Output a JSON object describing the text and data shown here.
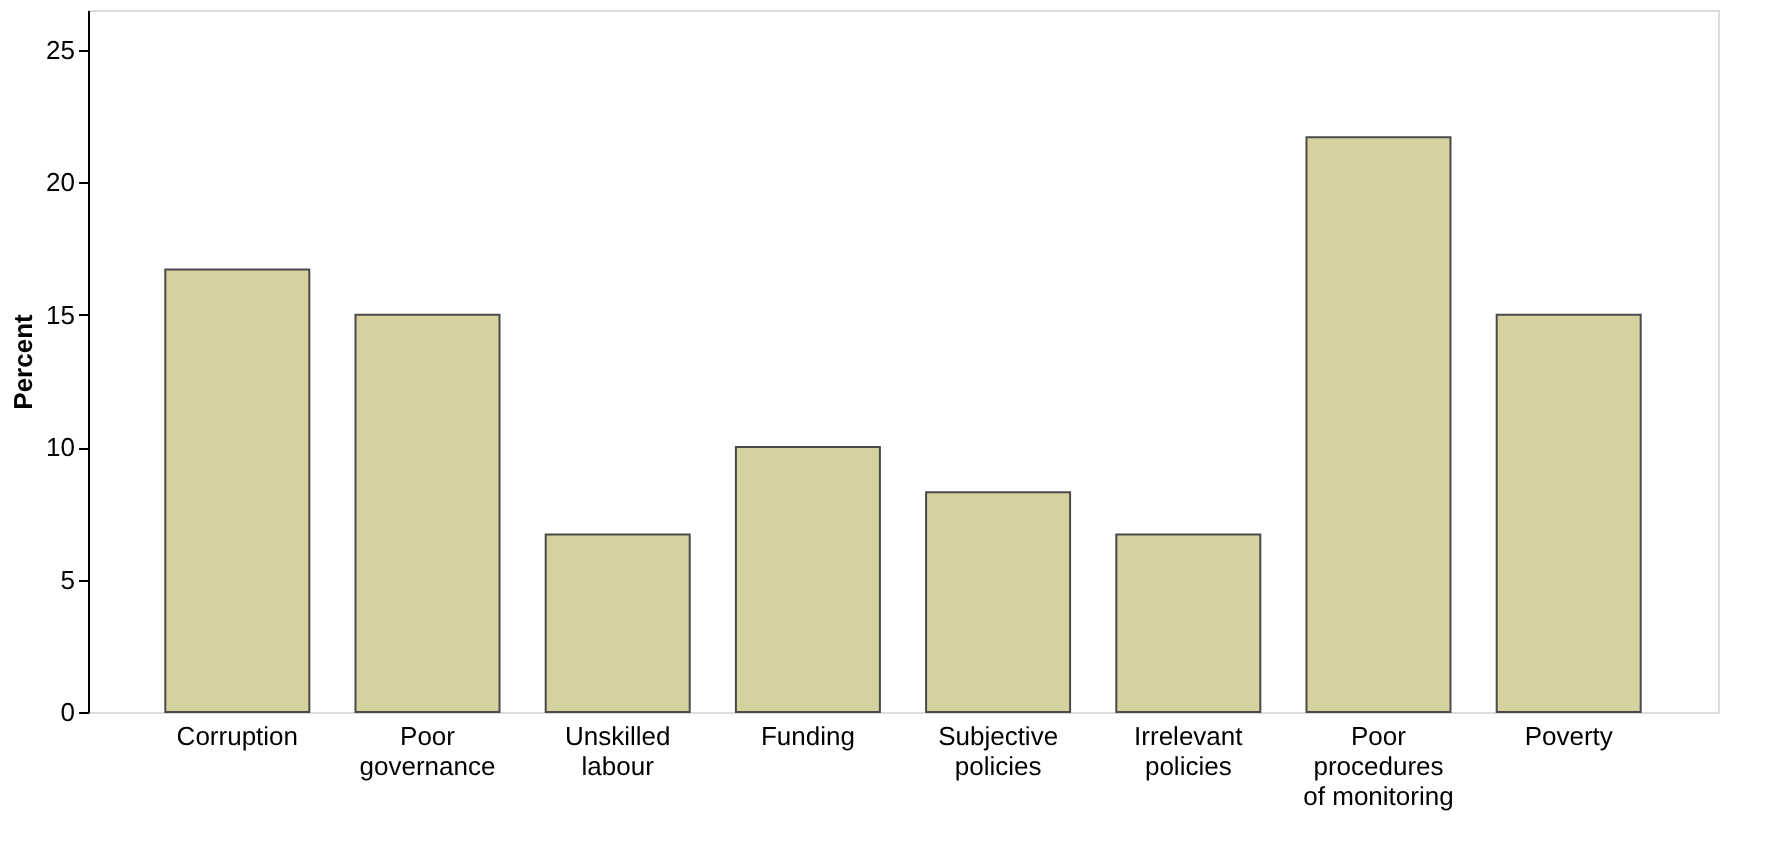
{
  "chart_data": {
    "type": "bar",
    "ylabel": "Percent",
    "categories": [
      "Corruption",
      "Poor\ngovernance",
      "Unskilled\nlabour",
      "Funding",
      "Subjective\npolicies",
      "Irrelevant\npolicies",
      "Poor\nprocedures\nof monitoring",
      "Poverty"
    ],
    "values": [
      16.7,
      15.0,
      6.7,
      10.0,
      8.3,
      6.7,
      21.7,
      15.0
    ],
    "color": "#d5d29f",
    "ylim": [
      0,
      26.5
    ],
    "yticks": [
      0,
      5,
      10,
      15,
      20,
      25
    ],
    "grid": false
  }
}
